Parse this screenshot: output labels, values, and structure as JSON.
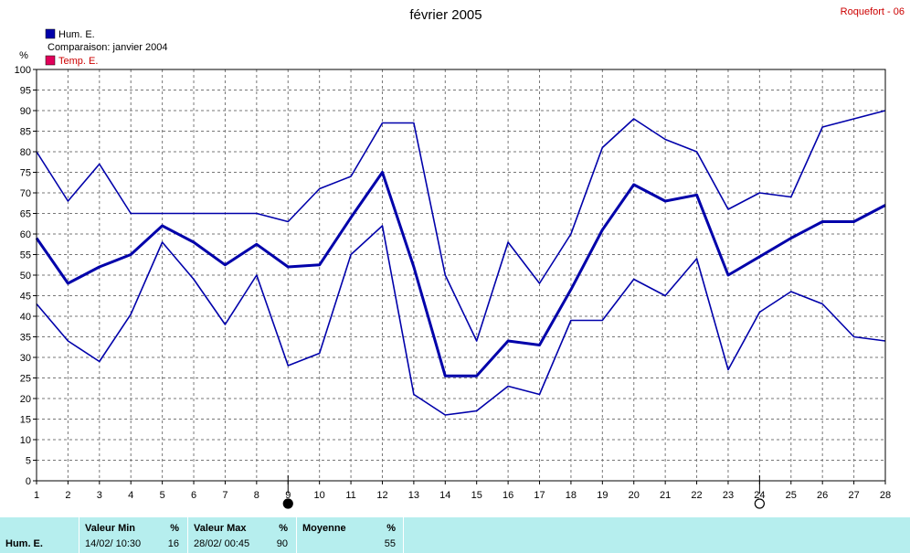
{
  "title": "février 2005",
  "station": "Roquefort - 06",
  "legend": {
    "series1": {
      "label": "Hum. E.",
      "color": "#0000aa"
    },
    "comparison": {
      "label": "Comparaison: janvier 2004"
    },
    "series2": {
      "label": "Temp. E.",
      "color": "#e0005a"
    }
  },
  "chart_data": {
    "type": "line",
    "ylabel": "%",
    "ylim": [
      0,
      100
    ],
    "yticks": [
      0,
      5,
      10,
      15,
      20,
      25,
      30,
      35,
      40,
      45,
      50,
      55,
      60,
      65,
      70,
      75,
      80,
      85,
      90,
      95,
      100
    ],
    "x": [
      1,
      2,
      3,
      4,
      5,
      6,
      7,
      8,
      9,
      10,
      11,
      12,
      13,
      14,
      15,
      16,
      17,
      18,
      19,
      20,
      21,
      22,
      23,
      24,
      25,
      26,
      27,
      28
    ],
    "grid": true,
    "series": [
      {
        "role": "max",
        "color": "#0000aa",
        "values": [
          80,
          68,
          77,
          65,
          65,
          65,
          65,
          65,
          63,
          71,
          74,
          87,
          87,
          50,
          34,
          58,
          48,
          60,
          81,
          88,
          83,
          80,
          66,
          70,
          69,
          86,
          88,
          90
        ]
      },
      {
        "role": "mean",
        "color": "#0000aa",
        "values": [
          59,
          48,
          52,
          55,
          62,
          58,
          52.5,
          57.5,
          52,
          52.5,
          64,
          75,
          52,
          25.5,
          25.5,
          34,
          33,
          46.5,
          61,
          72,
          68,
          69.5,
          50,
          54.5,
          59,
          63,
          63,
          67
        ]
      },
      {
        "role": "min",
        "color": "#0000aa",
        "values": [
          43,
          34,
          29,
          40.5,
          58,
          49,
          38,
          50,
          28,
          31,
          55,
          62,
          21,
          16,
          17,
          23,
          21,
          39,
          39,
          49,
          45,
          54,
          27,
          41,
          46,
          43,
          35,
          34
        ]
      }
    ],
    "markers": [
      {
        "x": 9,
        "symbol": "filled-circle"
      },
      {
        "x": 24,
        "symbol": "open-circle"
      }
    ]
  },
  "stats": {
    "row_label": "Hum. E.",
    "min": {
      "header": "Valeur Min",
      "unit": "%",
      "when": "14/02/  10:30",
      "value": "16"
    },
    "max": {
      "header": "Valeur Max",
      "unit": "%",
      "when": "28/02/  00:45",
      "value": "90"
    },
    "avg": {
      "header": "Moyenne",
      "unit": "%",
      "value": "55"
    }
  }
}
